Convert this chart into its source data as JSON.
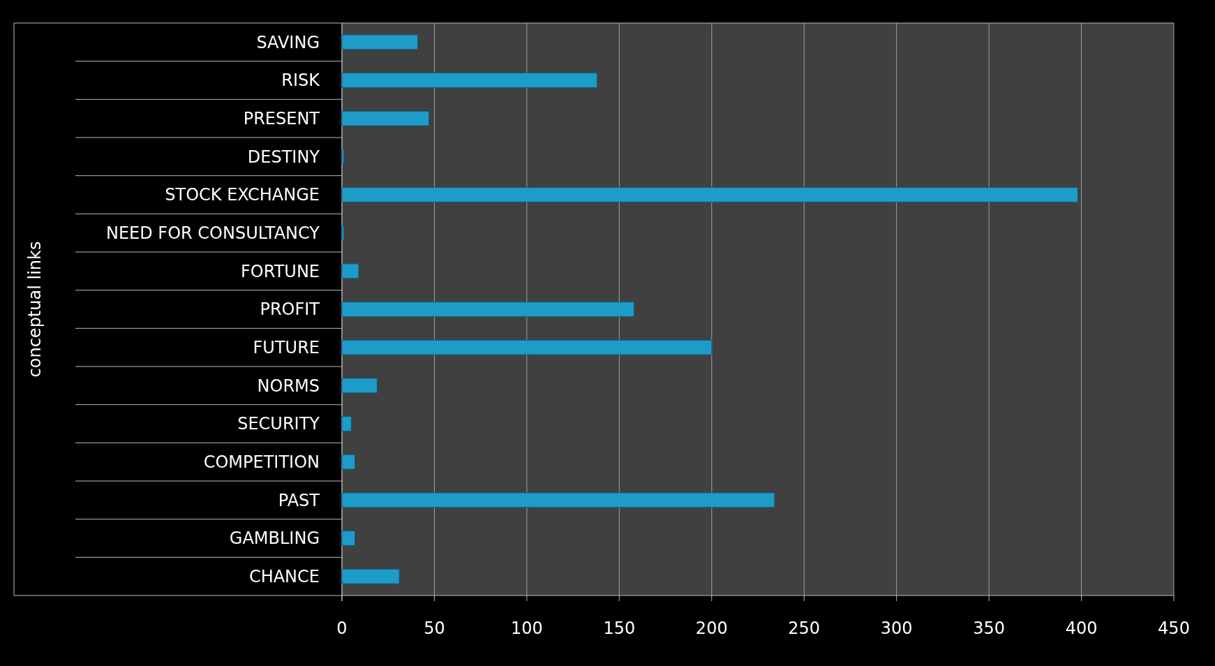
{
  "chart_data": {
    "type": "bar",
    "orientation": "horizontal",
    "ylabel": "conceptual links",
    "categories": [
      "SAVING",
      "RISK",
      "PRESENT",
      "DESTINY",
      "STOCK EXCHANGE",
      "NEED FOR CONSULTANCY",
      "FORTUNE",
      "PROFIT",
      "FUTURE",
      "NORMS",
      "SECURITY",
      "COMPETITION",
      "PAST",
      "GAMBLING",
      "CHANCE"
    ],
    "values": [
      41,
      138,
      47,
      1,
      398,
      1,
      9,
      158,
      200,
      19,
      5,
      7,
      234,
      7,
      31
    ],
    "color": "#1e9cc8",
    "xlim": [
      0,
      450
    ],
    "xticks": [
      0,
      50,
      100,
      150,
      200,
      250,
      300,
      350,
      400,
      450
    ],
    "grid": "x"
  }
}
